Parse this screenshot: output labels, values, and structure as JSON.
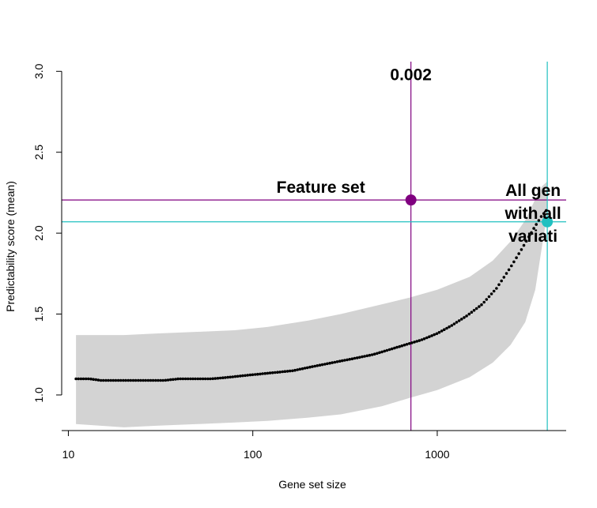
{
  "chart_data": {
    "type": "scatter",
    "xlabel": "Gene set size",
    "ylabel": "Predictability score (mean)",
    "x_scale": "log",
    "xlim": [
      9.2,
      5000
    ],
    "ylim": [
      0.78,
      3.06
    ],
    "x_ticks": [
      10,
      100,
      1000
    ],
    "x_tick_labels": [
      "10",
      "100",
      "1000"
    ],
    "y_ticks": [
      1.0,
      1.5,
      2.0,
      2.5,
      3.0
    ],
    "y_tick_labels": [
      "1.0",
      "1.5",
      "2.0",
      "2.5",
      "3.0"
    ],
    "grid": false,
    "series": [
      {
        "kind": "mean_points",
        "color": "#000000",
        "x": [
          11,
          13,
          15,
          18,
          22,
          27,
          33,
          40,
          50,
          60,
          75,
          90,
          110,
          135,
          165,
          200,
          245,
          300,
          370,
          450,
          550,
          670,
          820,
          1000,
          1200,
          1450,
          1750,
          2100,
          2500,
          2900,
          3300,
          3650,
          3900
        ],
        "y": [
          1.1,
          1.1,
          1.09,
          1.09,
          1.09,
          1.09,
          1.09,
          1.1,
          1.1,
          1.1,
          1.11,
          1.12,
          1.13,
          1.14,
          1.15,
          1.17,
          1.19,
          1.21,
          1.23,
          1.25,
          1.28,
          1.31,
          1.34,
          1.38,
          1.43,
          1.49,
          1.56,
          1.66,
          1.79,
          1.91,
          2.02,
          2.1,
          2.14
        ]
      },
      {
        "kind": "band",
        "color": "#d3d3d3",
        "x": [
          11,
          15,
          20,
          30,
          50,
          80,
          120,
          200,
          300,
          500,
          700,
          1000,
          1500,
          2000,
          2500,
          3000,
          3400,
          3700,
          3950
        ],
        "lower": [
          0.82,
          0.81,
          0.8,
          0.81,
          0.82,
          0.83,
          0.84,
          0.86,
          0.88,
          0.93,
          0.98,
          1.03,
          1.11,
          1.2,
          1.31,
          1.45,
          1.65,
          1.92,
          2.12
        ],
        "upper": [
          1.37,
          1.37,
          1.37,
          1.38,
          1.39,
          1.4,
          1.42,
          1.46,
          1.5,
          1.56,
          1.6,
          1.65,
          1.73,
          1.83,
          1.95,
          2.08,
          2.21,
          2.29,
          2.32
        ]
      }
    ],
    "highlights": [
      {
        "label": "Feature set",
        "x": 720,
        "y": 2.205,
        "color": "#800080"
      },
      {
        "label": "All gen with all variati",
        "lines": [
          "All gen",
          "with all",
          "variati"
        ],
        "x": 3950,
        "y": 2.07,
        "color": "#20c0c0"
      }
    ],
    "annotations": [
      {
        "text": "0.002",
        "x": 720,
        "y": 2.98
      }
    ]
  }
}
